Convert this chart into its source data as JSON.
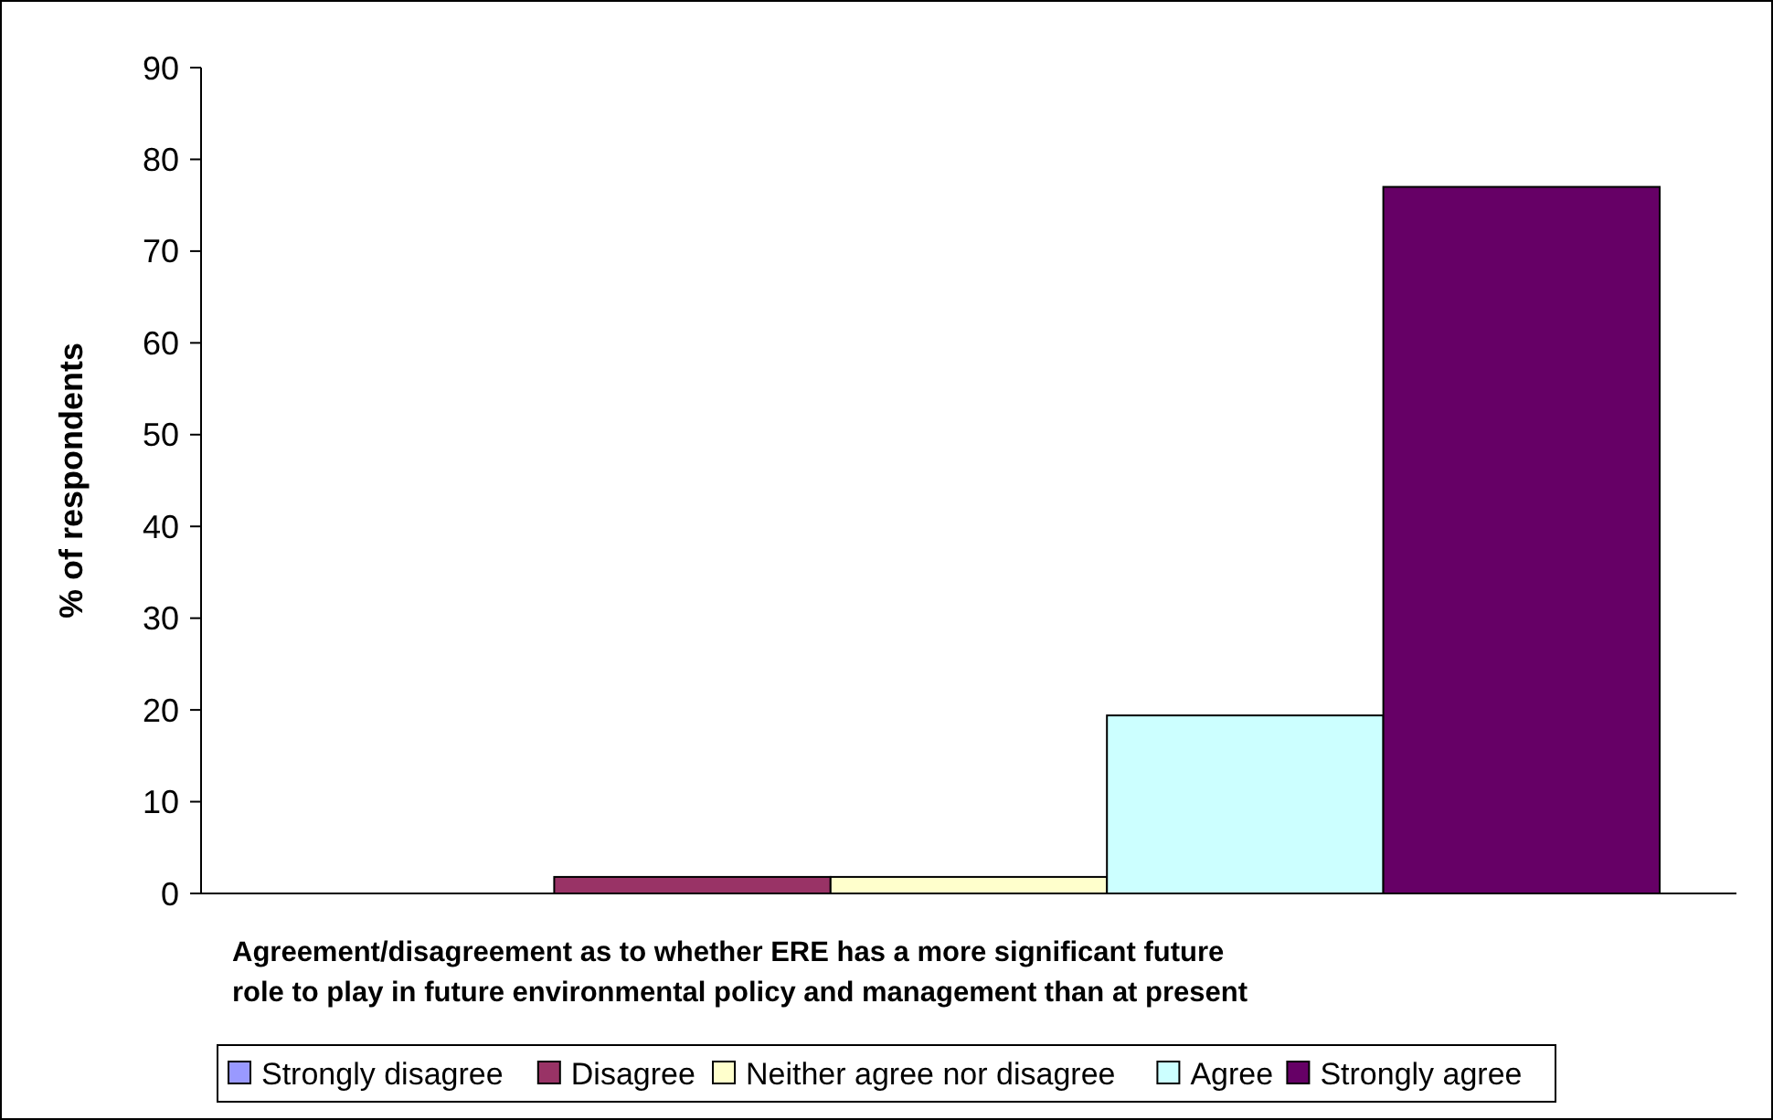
{
  "chart_data": {
    "type": "bar",
    "xlabel": "Agreement/disagreement as to whether ERE has a more significant future role to play in future environmental policy and management than at present",
    "ylabel": "% of respondents",
    "categories": [
      null
    ],
    "series": [
      {
        "name": "Strongly disagree",
        "color": "#9999ff",
        "values": [
          0
        ]
      },
      {
        "name": "Disagree",
        "color": "#993366",
        "values": [
          1.8
        ]
      },
      {
        "name": "Neither agree nor disagree",
        "color": "#ffffcc",
        "values": [
          1.8
        ]
      },
      {
        "name": "Agree",
        "color": "#ccffff",
        "values": [
          19.4
        ]
      },
      {
        "name": "Strongly agree",
        "color": "#660066",
        "values": [
          77
        ]
      }
    ],
    "ylim": [
      0,
      90
    ],
    "yticks": [
      0,
      10,
      20,
      30,
      40,
      50,
      60,
      70,
      80,
      90
    ],
    "grid": false,
    "legend": "bottom"
  }
}
